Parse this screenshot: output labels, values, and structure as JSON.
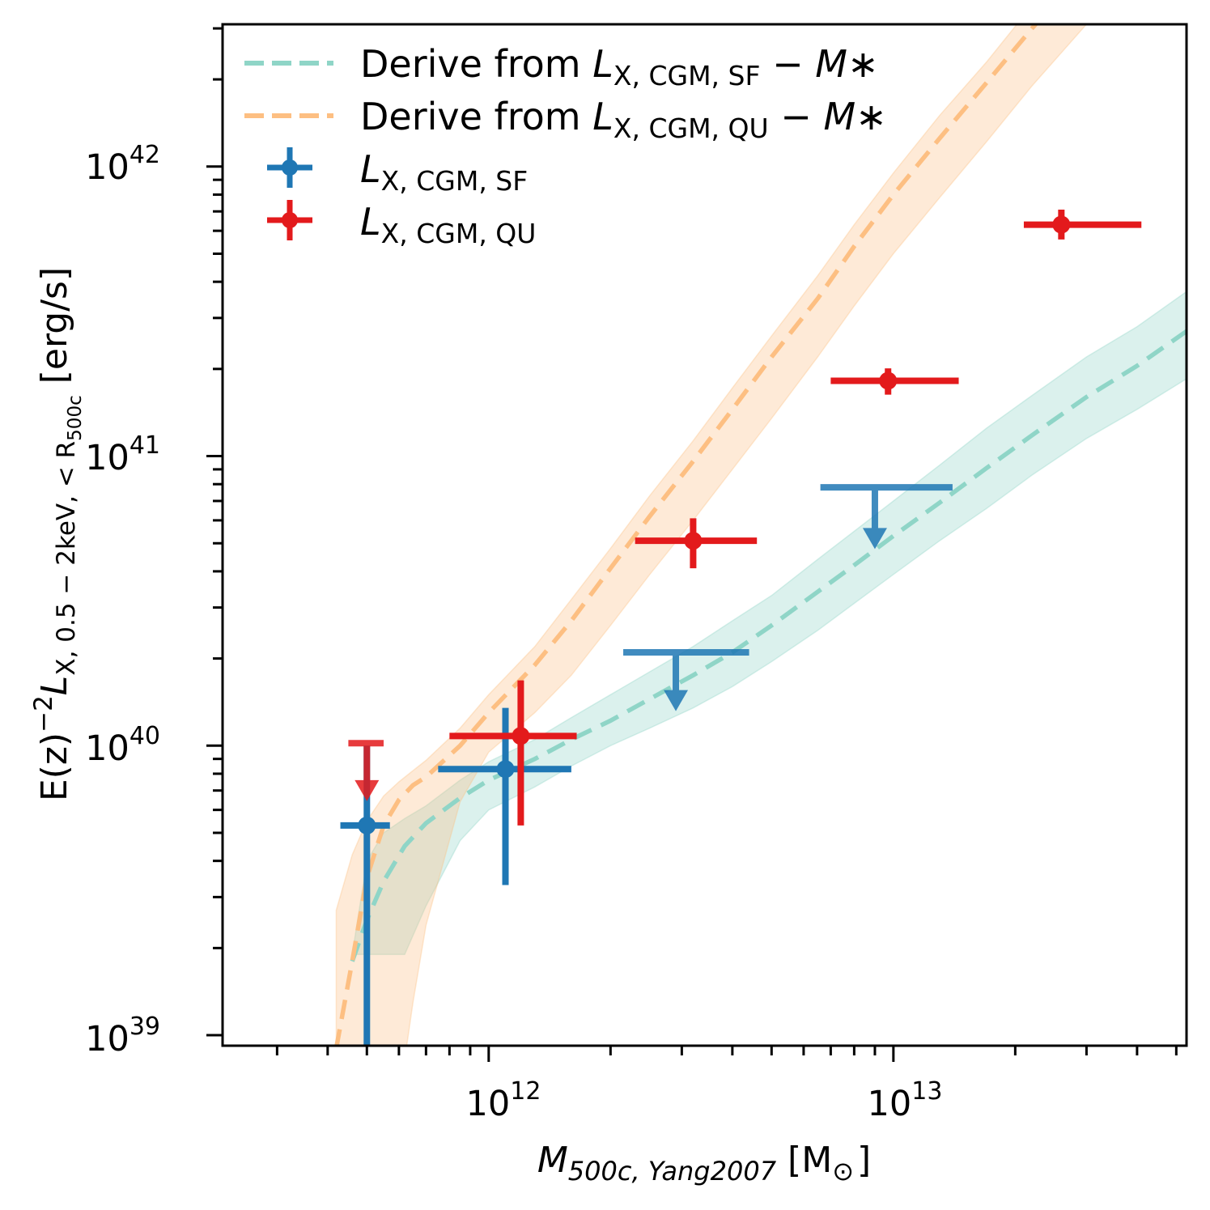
{
  "chart_data": {
    "type": "scatter",
    "title": "",
    "xlabel": {
      "main": "M",
      "sub": "500c, Yang2007",
      "unit": "[M",
      "unit_sub": "⊙",
      "unit_close": "]"
    },
    "ylabel": {
      "prefix": "E(z)",
      "exp": "−2",
      "main": "L",
      "sub": "X, 0.5 − 2keV, < R",
      "subsub": "500c",
      "unit": "[erg/s]"
    },
    "xscale": "log",
    "yscale": "log",
    "xlim": [
      220000000000.0,
      53000000000000.0
    ],
    "ylim": [
      9.2e+38,
      3.1e+42
    ],
    "x_ticks": [
      {
        "value": 1000000000000.0,
        "base": "10",
        "exp": "12"
      },
      {
        "value": 10000000000000.0,
        "base": "10",
        "exp": "13"
      }
    ],
    "y_ticks": [
      {
        "value": 1e+39,
        "base": "10",
        "exp": "39"
      },
      {
        "value": 1e+40,
        "base": "10",
        "exp": "40"
      },
      {
        "value": 1e+41,
        "base": "10",
        "exp": "41"
      },
      {
        "value": 1e+42,
        "base": "10",
        "exp": "42"
      }
    ],
    "legend": {
      "placement": "top-left",
      "entries": [
        {
          "key": "sf_model",
          "pre": "Derive from ",
          "L": "L",
          "sub": "X, CGM, SF",
          "post": " − M",
          "star": "∗",
          "color": "#8fd5c7"
        },
        {
          "key": "qu_model",
          "pre": "Derive from ",
          "L": "L",
          "sub": "X, CGM, QU",
          "post": " − M",
          "star": "∗",
          "color": "#fdbf82"
        },
        {
          "key": "sf_data",
          "pre": "",
          "L": "L",
          "sub": "X, CGM, SF",
          "post": "",
          "star": "",
          "color": "#1f77b4"
        },
        {
          "key": "qu_data",
          "pre": "",
          "L": "L",
          "sub": "X, CGM, QU",
          "post": "",
          "star": "",
          "color": "#e31a1c"
        }
      ]
    },
    "model_curves": [
      {
        "name": "Derive from L_X,CGM,SF − M*",
        "color": "#8fd5c7",
        "band_color": "#8fd5c7",
        "x": [
          460000000000.0,
          500000000000.0,
          550000000000.0,
          620000000000.0,
          700000000000.0,
          850000000000.0,
          1000000000000.0,
          1300000000000.0,
          1600000000000.0,
          2000000000000.0,
          2500000000000.0,
          3200000000000.0,
          4000000000000.0,
          5000000000000.0,
          6500000000000.0,
          8000000000000.0,
          10000000000000.0,
          13000000000000.0,
          17000000000000.0,
          22000000000000.0,
          30000000000000.0,
          40000000000000.0,
          53000000000000.0
        ],
        "y": [
          1.8e+39,
          2.5e+39,
          3.4e+39,
          4.5e+39,
          5.4e+39,
          6.6e+39,
          7.6e+39,
          9e+39,
          1.05e+40,
          1.22e+40,
          1.45e+40,
          1.75e+40,
          2.1e+40,
          2.6e+40,
          3.4e+40,
          4.2e+40,
          5.3e+40,
          6.9e+40,
          9.1e+40,
          1.18e+41,
          1.6e+41,
          2.05e+41,
          2.7e+41
        ],
        "band_upper": [
          1.9e+39,
          4e+39,
          5e+39,
          5.6e+39,
          6.2e+39,
          7.6e+39,
          8.8e+39,
          1.05e+40,
          1.25e+40,
          1.5e+40,
          1.8e+40,
          2.2e+40,
          2.7e+40,
          3.3e+40,
          4.4e+40,
          5.5e+40,
          7e+40,
          9.3e+40,
          1.25e+41,
          1.62e+41,
          2.2e+41,
          2.8e+41,
          3.7e+41
        ],
        "band_lower": [
          1.9e+39,
          1.9e+39,
          1.9e+39,
          1.9e+39,
          2.8e+39,
          4.7e+39,
          6e+39,
          7.2e+39,
          8.5e+39,
          1e+40,
          1.15e+40,
          1.35e+40,
          1.6e+40,
          1.95e+40,
          2.5e+40,
          3.1e+40,
          3.9e+40,
          5.1e+40,
          6.6e+40,
          8.6e+40,
          1.15e+41,
          1.45e+41,
          1.85e+41
        ]
      },
      {
        "name": "Derive from L_X,CGM,QU − M*",
        "color": "#fdbf82",
        "band_color": "#fdbf82",
        "x": [
          420000000000.0,
          460000000000.0,
          500000000000.0,
          550000000000.0,
          600000000000.0,
          650000000000.0,
          700000000000.0,
          850000000000.0,
          1000000000000.0,
          1300000000000.0,
          1600000000000.0,
          2000000000000.0,
          2500000000000.0,
          3200000000000.0,
          4000000000000.0,
          5000000000000.0,
          6500000000000.0,
          8000000000000.0,
          10000000000000.0,
          13000000000000.0,
          17000000000000.0,
          22000000000000.0,
          30000000000000.0,
          40000000000000.0,
          53000000000000.0
        ],
        "y": [
          9e+38,
          1.8e+39,
          3.5e+39,
          5.3e+39,
          6.5e+39,
          7.3e+39,
          7.8e+39,
          1e+40,
          1.3e+40,
          1.9e+40,
          2.7e+40,
          4.1e+40,
          6.2e+40,
          9.6e+40,
          1.45e+41,
          2.2e+41,
          3.5e+41,
          5.3e+41,
          8e+41,
          1.25e+42,
          1.95e+42,
          3e+42,
          4.9e+42,
          7.6e+42,
          1.2e+43
        ],
        "band_upper": [
          2.7e+39,
          4.2e+39,
          5.5e+39,
          6.7e+39,
          7.5e+39,
          8.2e+39,
          8.9e+39,
          1.15e+40,
          1.5e+40,
          2.2e+40,
          3.2e+40,
          4.8e+40,
          7.3e+40,
          1.13e+41,
          1.72e+41,
          2.6e+41,
          4.2e+41,
          6.3e+41,
          9.5e+41,
          1.5e+42,
          2.3e+42,
          3.6e+42,
          5.8e+42,
          9e+42,
          1.4e+43
        ],
        "band_lower": [
          5e+38,
          5e+38,
          5e+38,
          5e+38,
          6e+38,
          1.3e+39,
          2.4e+39,
          6.4e+39,
          9.5e+39,
          1.3e+40,
          1.75e+40,
          2.6e+40,
          3.9e+40,
          6e+40,
          9e+40,
          1.35e+41,
          2.2e+41,
          3.3e+41,
          5e+41,
          7.8e+41,
          1.22e+42,
          1.9e+42,
          3.1e+42,
          4.8e+42,
          7.5e+42
        ]
      }
    ],
    "series": [
      {
        "name": "L_X,CGM,SF",
        "color": "#1f77b4",
        "points": [
          {
            "x": 500000000000.0,
            "y": 5.3e+39,
            "xlo": 430000000000.0,
            "xhi": 570000000000.0,
            "ylo": 9.2e+38,
            "yhi": 1e+40
          },
          {
            "x": 1100000000000.0,
            "y": 8.3e+39,
            "xlo": 750000000000.0,
            "xhi": 1600000000000.0,
            "ylo": 3.3e+39,
            "yhi": 1.35e+40
          }
        ],
        "upper_limits": [
          {
            "x": 2900000000000.0,
            "y": 2.1e+40,
            "xlo": 2150000000000.0,
            "xhi": 4400000000000.0,
            "arrow_to": 1.35e+40
          },
          {
            "x": 9000000000000.0,
            "y": 7.8e+40,
            "xlo": 6600000000000.0,
            "xhi": 14000000000000.0,
            "arrow_to": 4.9e+40
          }
        ]
      },
      {
        "name": "L_X,CGM,QU",
        "color": "#e31a1c",
        "points": [
          {
            "x": 1200000000000.0,
            "y": 1.08e+40,
            "xlo": 800000000000.0,
            "xhi": 1650000000000.0,
            "ylo": 5.3e+39,
            "yhi": 1.68e+40
          },
          {
            "x": 3200000000000.0,
            "y": 5.1e+40,
            "xlo": 2300000000000.0,
            "xhi": 4600000000000.0,
            "ylo": 4.1e+40,
            "yhi": 6.1e+40
          },
          {
            "x": 9700000000000.0,
            "y": 1.82e+41,
            "xlo": 7000000000000.0,
            "xhi": 14500000000000.0,
            "ylo": 1.63e+41,
            "yhi": 2.01e+41
          },
          {
            "x": 26000000000000.0,
            "y": 6.3e+41,
            "xlo": 21000000000000.0,
            "xhi": 41000000000000.0,
            "ylo": 5.6e+41,
            "yhi": 7.1e+41
          }
        ],
        "upper_limits": [
          {
            "x": 500000000000.0,
            "y": 1.02e+40,
            "xlo": 450000000000.0,
            "xhi": 550000000000.0,
            "arrow_to": 6.6e+39
          }
        ]
      }
    ]
  }
}
